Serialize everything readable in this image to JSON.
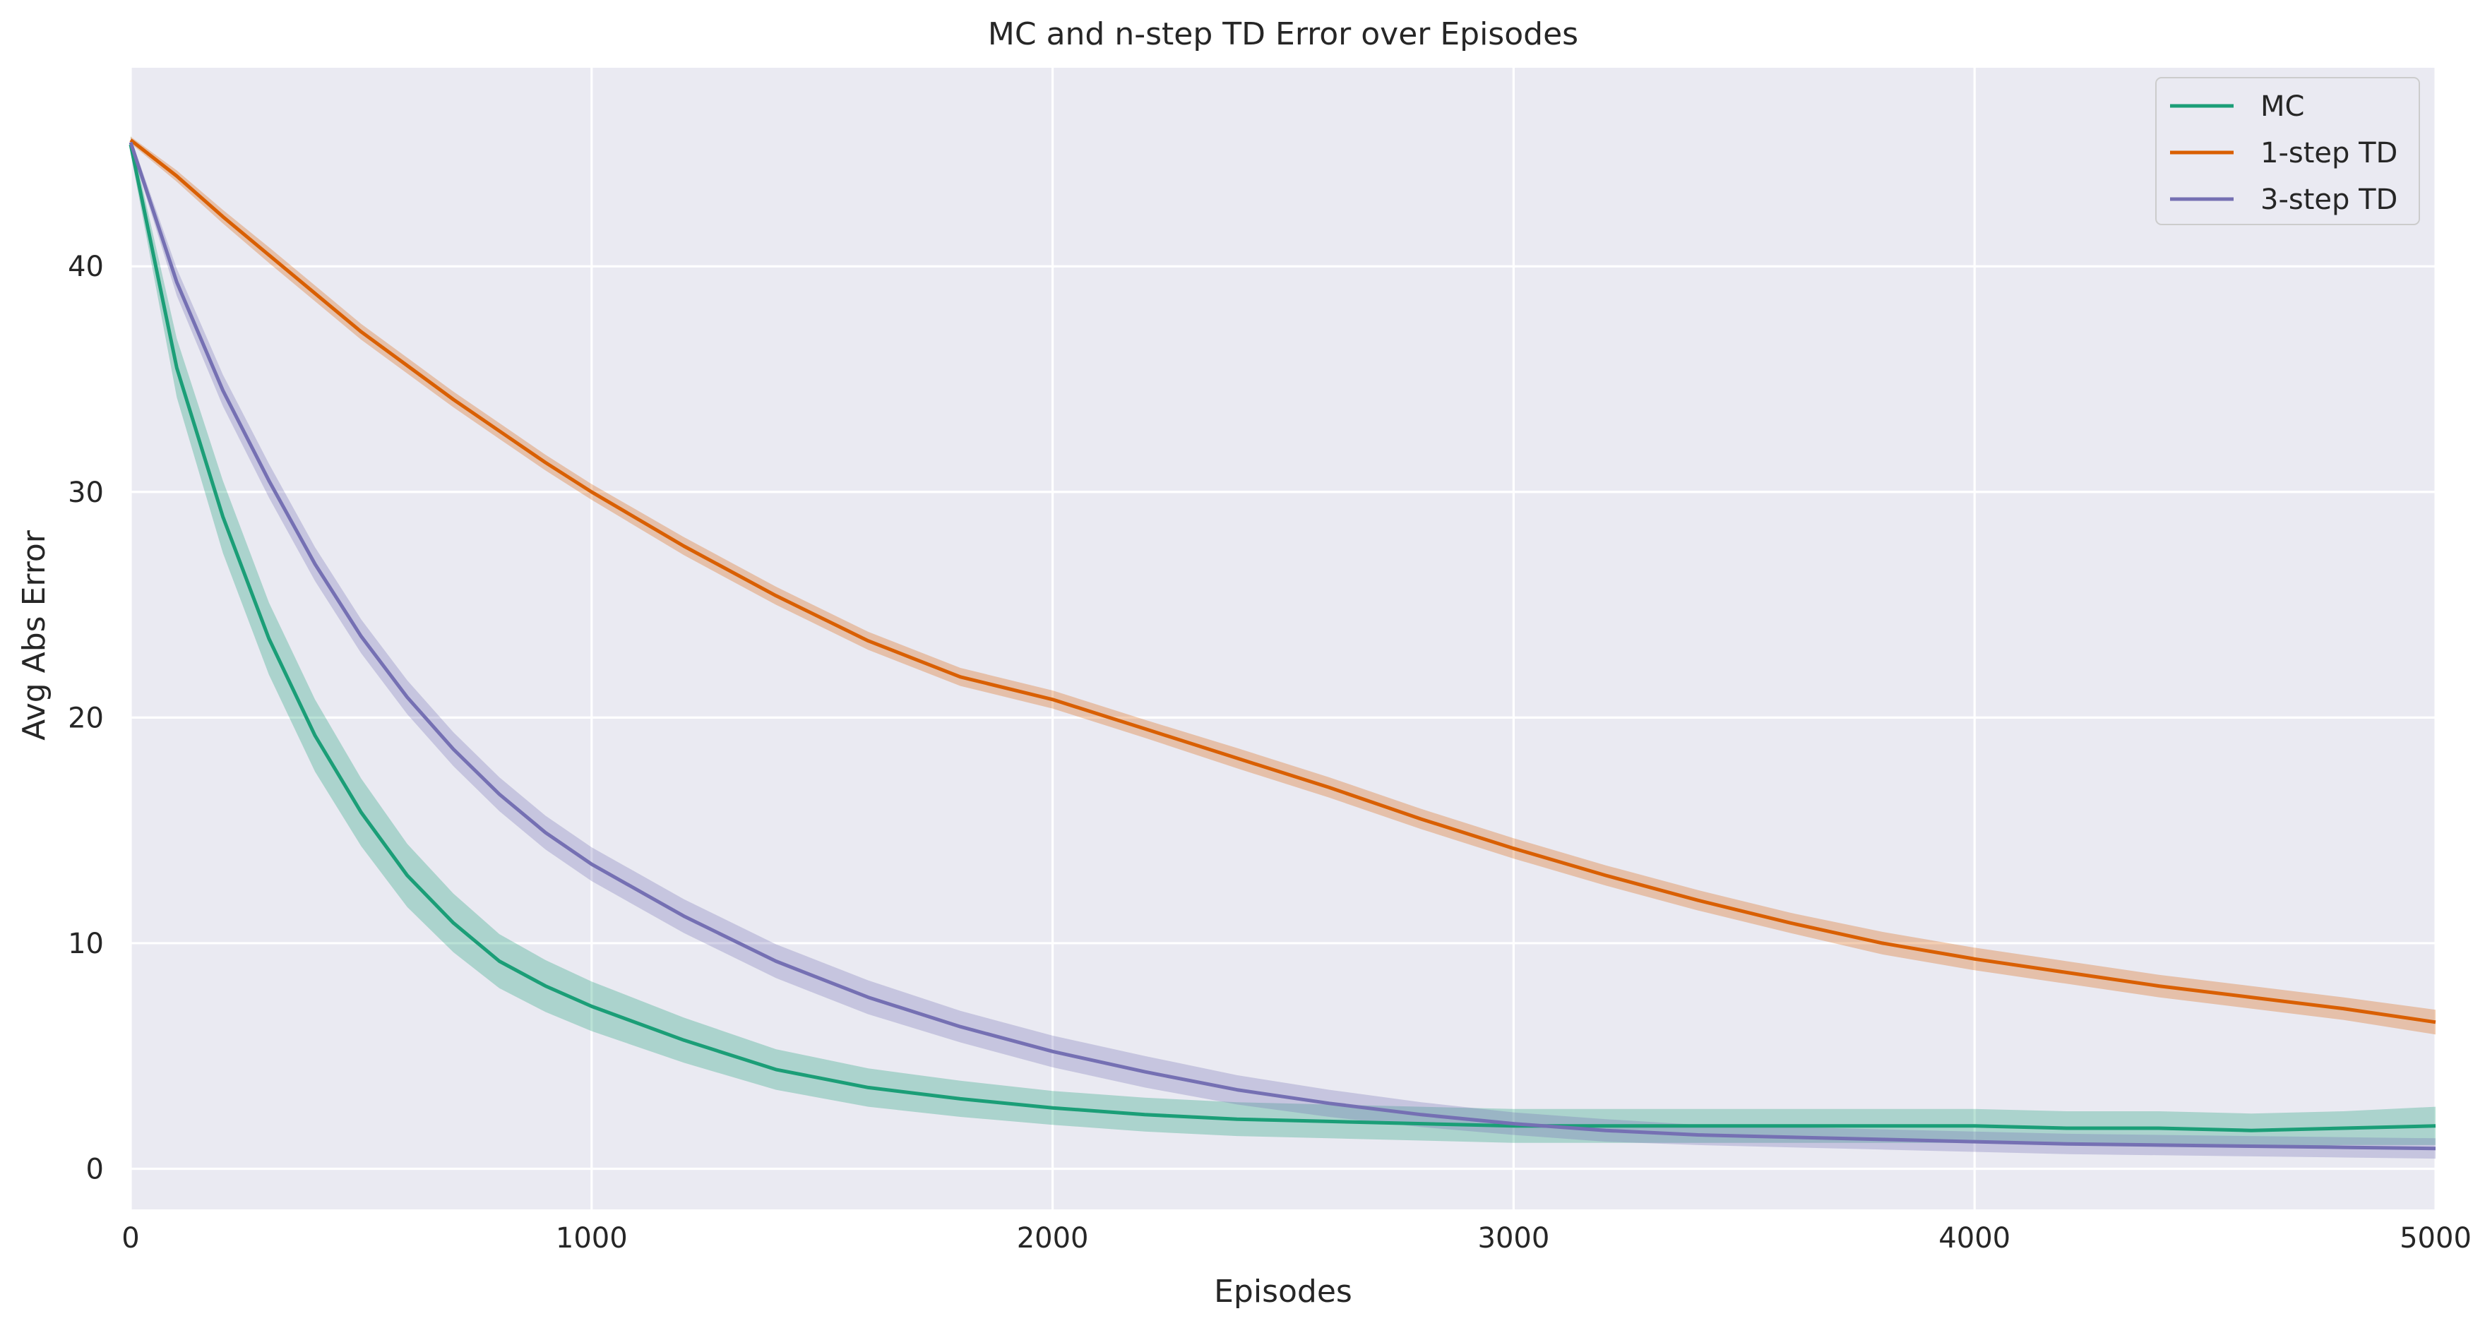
{
  "chart_data": {
    "type": "line",
    "title": "MC and n-step TD Error over Episodes",
    "xlabel": "Episodes",
    "ylabel": "Avg Abs Error",
    "xlim": [
      0,
      5000
    ],
    "ylim": [
      -1.8,
      48.8
    ],
    "xticks": [
      0,
      1000,
      2000,
      3000,
      4000,
      5000
    ],
    "yticks": [
      0,
      10,
      20,
      30,
      40
    ],
    "grid": true,
    "legend_position": "top-right",
    "background_color": "#EAEAF2",
    "grid_color": "#FFFFFF",
    "x": [
      0,
      100,
      200,
      300,
      400,
      500,
      600,
      700,
      800,
      900,
      1000,
      1200,
      1400,
      1600,
      1800,
      2000,
      2200,
      2400,
      2600,
      2800,
      3000,
      3200,
      3400,
      3600,
      3800,
      4000,
      4200,
      4400,
      4600,
      4800,
      5000
    ],
    "series": [
      {
        "name": "MC",
        "color": "#1B9E77",
        "values": [
          45.4,
          35.5,
          28.9,
          23.5,
          19.2,
          15.8,
          13.0,
          10.9,
          9.2,
          8.1,
          7.2,
          5.7,
          4.4,
          3.6,
          3.1,
          2.7,
          2.4,
          2.2,
          2.1,
          2.0,
          1.9,
          1.9,
          1.9,
          1.9,
          1.9,
          1.9,
          1.8,
          1.8,
          1.7,
          1.8,
          1.9
        ],
        "band": [
          0.4,
          1.3,
          1.6,
          1.6,
          1.6,
          1.5,
          1.4,
          1.3,
          1.2,
          1.15,
          1.1,
          1.0,
          0.9,
          0.85,
          0.8,
          0.75,
          0.75,
          0.75,
          0.75,
          0.75,
          0.75,
          0.75,
          0.75,
          0.75,
          0.75,
          0.75,
          0.75,
          0.75,
          0.75,
          0.75,
          0.85
        ]
      },
      {
        "name": "1-step TD",
        "color": "#D95F02",
        "values": [
          45.6,
          44.0,
          42.2,
          40.5,
          38.8,
          37.1,
          35.6,
          34.1,
          32.7,
          31.3,
          30.0,
          27.6,
          25.4,
          23.4,
          21.8,
          20.8,
          19.5,
          18.2,
          16.9,
          15.5,
          14.2,
          13.0,
          11.9,
          10.9,
          10.0,
          9.3,
          8.7,
          8.1,
          7.6,
          7.1,
          6.5
        ],
        "band": [
          0.15,
          0.25,
          0.3,
          0.35,
          0.35,
          0.35,
          0.35,
          0.35,
          0.35,
          0.35,
          0.35,
          0.4,
          0.4,
          0.4,
          0.4,
          0.4,
          0.4,
          0.45,
          0.45,
          0.45,
          0.45,
          0.45,
          0.45,
          0.45,
          0.5,
          0.5,
          0.5,
          0.5,
          0.5,
          0.5,
          0.55
        ]
      },
      {
        "name": "3-step TD",
        "color": "#7570B3",
        "values": [
          45.5,
          39.3,
          34.5,
          30.5,
          26.8,
          23.6,
          20.9,
          18.6,
          16.6,
          14.9,
          13.5,
          11.2,
          9.2,
          7.6,
          6.3,
          5.2,
          4.3,
          3.5,
          2.9,
          2.4,
          2.0,
          1.7,
          1.5,
          1.4,
          1.3,
          1.2,
          1.1,
          1.05,
          1.0,
          0.95,
          0.9
        ],
        "band": [
          0.2,
          0.6,
          0.7,
          0.75,
          0.75,
          0.75,
          0.75,
          0.75,
          0.75,
          0.75,
          0.75,
          0.75,
          0.75,
          0.75,
          0.7,
          0.7,
          0.7,
          0.65,
          0.6,
          0.55,
          0.5,
          0.5,
          0.45,
          0.45,
          0.45,
          0.45,
          0.45,
          0.45,
          0.45,
          0.45,
          0.45
        ]
      }
    ]
  }
}
